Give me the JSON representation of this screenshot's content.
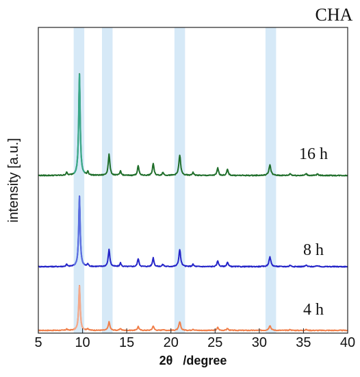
{
  "chart_data": {
    "type": "line",
    "title": "CHA",
    "xlabel_symbol": "2θ",
    "xlabel_unit": "/degree",
    "ylabel": "intensity [a.u.]",
    "xlim": [
      5,
      40
    ],
    "xticks": [
      5,
      10,
      15,
      20,
      25,
      30,
      35,
      40
    ],
    "highlight_bands": [
      [
        9.0,
        10.2
      ],
      [
        12.2,
        13.4
      ],
      [
        20.4,
        21.6
      ],
      [
        30.7,
        31.9
      ]
    ],
    "highlight_color": "#d6e9f7",
    "series": [
      {
        "name": "4 h",
        "color": "#f07f4a",
        "peak_color": "#f4a98a",
        "baseline": 0,
        "peaks": [
          [
            8.2,
            0.2,
            0.08
          ],
          [
            9.65,
            6.8,
            0.1
          ],
          [
            10.6,
            0.25,
            0.08
          ],
          [
            13.0,
            1.3,
            0.11
          ],
          [
            14.3,
            0.3,
            0.09
          ],
          [
            16.3,
            0.6,
            0.1
          ],
          [
            18.0,
            0.7,
            0.1
          ],
          [
            19.1,
            0.15,
            0.1
          ],
          [
            21.0,
            1.3,
            0.12
          ],
          [
            22.5,
            0.2,
            0.1
          ],
          [
            25.3,
            0.45,
            0.1
          ],
          [
            26.4,
            0.3,
            0.1
          ],
          [
            31.2,
            0.75,
            0.13
          ],
          [
            33.5,
            0.12,
            0.1
          ],
          [
            35.3,
            0.12,
            0.1
          ]
        ]
      },
      {
        "name": "8 h",
        "color": "#2424c8",
        "peak_color": "#5a6ee0",
        "baseline": 0,
        "peaks": [
          [
            8.2,
            0.3,
            0.08
          ],
          [
            9.65,
            9.5,
            0.1
          ],
          [
            10.6,
            0.35,
            0.08
          ],
          [
            13.0,
            2.3,
            0.11
          ],
          [
            14.3,
            0.5,
            0.09
          ],
          [
            16.3,
            1.1,
            0.1
          ],
          [
            18.0,
            1.2,
            0.1
          ],
          [
            19.1,
            0.3,
            0.1
          ],
          [
            21.0,
            2.3,
            0.12
          ],
          [
            22.5,
            0.3,
            0.1
          ],
          [
            25.3,
            0.8,
            0.1
          ],
          [
            26.4,
            0.6,
            0.1
          ],
          [
            31.2,
            1.3,
            0.13
          ],
          [
            33.5,
            0.2,
            0.1
          ],
          [
            35.3,
            0.2,
            0.1
          ],
          [
            36.6,
            0.15,
            0.1
          ]
        ]
      },
      {
        "name": "16 h",
        "color": "#1f6e2a",
        "peak_color": "#3aa888",
        "baseline": 0,
        "peaks": [
          [
            8.2,
            0.4,
            0.08
          ],
          [
            9.65,
            13.5,
            0.1
          ],
          [
            10.6,
            0.5,
            0.08
          ],
          [
            13.0,
            2.8,
            0.11
          ],
          [
            14.3,
            0.6,
            0.09
          ],
          [
            16.3,
            1.3,
            0.1
          ],
          [
            18.0,
            1.6,
            0.1
          ],
          [
            19.1,
            0.4,
            0.1
          ],
          [
            21.0,
            2.7,
            0.12
          ],
          [
            22.5,
            0.4,
            0.1
          ],
          [
            25.3,
            1.0,
            0.1
          ],
          [
            26.4,
            0.8,
            0.1
          ],
          [
            31.2,
            1.4,
            0.13
          ],
          [
            33.5,
            0.25,
            0.1
          ],
          [
            35.3,
            0.25,
            0.1
          ],
          [
            36.6,
            0.2,
            0.1
          ]
        ]
      }
    ]
  }
}
